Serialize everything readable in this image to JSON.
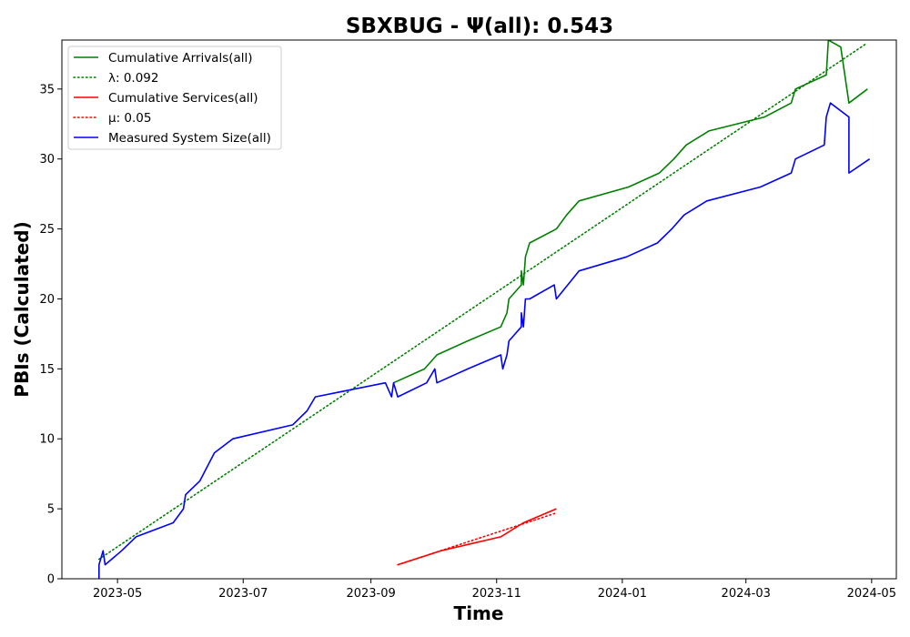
{
  "chart_data": {
    "type": "line",
    "title": "SBXBUG -  Ψ(all): 0.543",
    "xlabel": "Time",
    "ylabel": "PBIs (Calculated)",
    "xlim": [
      "2023-04-04",
      "2024-05-13"
    ],
    "ylim": [
      0,
      38.5
    ],
    "x_ticks": [
      "2023-05-01",
      "2023-07-01",
      "2023-09-01",
      "2023-11-01",
      "2024-01-01",
      "2024-03-01",
      "2024-05-01"
    ],
    "x_tick_labels": [
      "2023-05",
      "2023-07",
      "2023-09",
      "2023-11",
      "2024-01",
      "2024-03",
      "2024-05"
    ],
    "y_ticks": [
      0,
      5,
      10,
      15,
      20,
      25,
      30,
      35
    ],
    "y_tick_labels": [
      "0",
      "5",
      "10",
      "15",
      "20",
      "25",
      "30",
      "35"
    ],
    "grid": false,
    "legend_position": "top-left",
    "series": [
      {
        "name": "Cumulative Arrivals(all)",
        "color": "#008000",
        "style": "solid",
        "points": [
          [
            "2023-09-12",
            14
          ],
          [
            "2023-09-27",
            15
          ],
          [
            "2023-10-03",
            16
          ],
          [
            "2023-10-18",
            17
          ],
          [
            "2023-11-03",
            18
          ],
          [
            "2023-11-06",
            19
          ],
          [
            "2023-11-07",
            20
          ],
          [
            "2023-11-13",
            21
          ],
          [
            "2023-11-13",
            22
          ],
          [
            "2023-11-14",
            21
          ],
          [
            "2023-11-15",
            23
          ],
          [
            "2023-11-17",
            24
          ],
          [
            "2023-11-30",
            25
          ],
          [
            "2023-12-05",
            26
          ],
          [
            "2023-12-11",
            27
          ],
          [
            "2024-01-04",
            28
          ],
          [
            "2024-01-19",
            29
          ],
          [
            "2024-01-26",
            30
          ],
          [
            "2024-02-01",
            31
          ],
          [
            "2024-02-12",
            32
          ],
          [
            "2024-03-10",
            33
          ],
          [
            "2024-03-23",
            34
          ],
          [
            "2024-03-25",
            35
          ],
          [
            "2024-04-09",
            36
          ],
          [
            "2024-04-10",
            38.5
          ],
          [
            "2024-04-16",
            38
          ],
          [
            "2024-04-20",
            34
          ],
          [
            "2024-04-29",
            35
          ]
        ]
      },
      {
        "name": "λ: 0.092",
        "color": "#008000",
        "style": "dotted",
        "points": [
          [
            "2023-04-22",
            1.4
          ],
          [
            "2024-04-28",
            38.2
          ]
        ]
      },
      {
        "name": "Cumulative Services(all)",
        "color": "#ff0000",
        "style": "solid",
        "points": [
          [
            "2023-09-14",
            1
          ],
          [
            "2023-10-05",
            2
          ],
          [
            "2023-11-03",
            3
          ],
          [
            "2023-11-14",
            4
          ],
          [
            "2023-11-30",
            5
          ]
        ]
      },
      {
        "name": "μ: 0.05",
        "color": "#ff0000",
        "style": "dotted",
        "points": [
          [
            "2023-09-14",
            1
          ],
          [
            "2023-11-30",
            4.7
          ]
        ]
      },
      {
        "name": "Measured System Size(all)",
        "color": "#0000ff",
        "style": "solid",
        "points": [
          [
            "2023-04-22",
            0
          ],
          [
            "2023-04-22",
            1
          ],
          [
            "2023-04-24",
            2
          ],
          [
            "2023-04-25",
            1
          ],
          [
            "2023-05-03",
            2
          ],
          [
            "2023-05-10",
            3
          ],
          [
            "2023-05-28",
            4
          ],
          [
            "2023-06-02",
            5
          ],
          [
            "2023-06-03",
            6
          ],
          [
            "2023-06-10",
            7
          ],
          [
            "2023-06-17",
            9
          ],
          [
            "2023-06-26",
            10
          ],
          [
            "2023-07-25",
            11
          ],
          [
            "2023-08-01",
            12
          ],
          [
            "2023-08-05",
            13
          ],
          [
            "2023-09-08",
            14
          ],
          [
            "2023-09-11",
            13
          ],
          [
            "2023-09-12",
            14
          ],
          [
            "2023-09-14",
            13
          ],
          [
            "2023-09-28",
            14
          ],
          [
            "2023-10-02",
            15
          ],
          [
            "2023-10-03",
            14
          ],
          [
            "2023-10-18",
            15
          ],
          [
            "2023-11-03",
            16
          ],
          [
            "2023-11-04",
            15
          ],
          [
            "2023-11-06",
            16
          ],
          [
            "2023-11-07",
            17
          ],
          [
            "2023-11-13",
            18
          ],
          [
            "2023-11-13",
            19
          ],
          [
            "2023-11-14",
            18
          ],
          [
            "2023-11-15",
            20
          ],
          [
            "2023-11-17",
            20
          ],
          [
            "2023-11-29",
            21
          ],
          [
            "2023-11-30",
            20
          ],
          [
            "2023-12-11",
            22
          ],
          [
            "2024-01-03",
            23
          ],
          [
            "2024-01-18",
            24
          ],
          [
            "2024-01-25",
            25
          ],
          [
            "2024-01-31",
            26
          ],
          [
            "2024-02-11",
            27
          ],
          [
            "2024-03-08",
            28
          ],
          [
            "2024-03-23",
            29
          ],
          [
            "2024-03-25",
            30
          ],
          [
            "2024-04-08",
            31
          ],
          [
            "2024-04-09",
            33
          ],
          [
            "2024-04-11",
            34
          ],
          [
            "2024-04-20",
            33
          ],
          [
            "2024-04-20",
            29
          ],
          [
            "2024-04-30",
            30
          ]
        ]
      }
    ]
  }
}
